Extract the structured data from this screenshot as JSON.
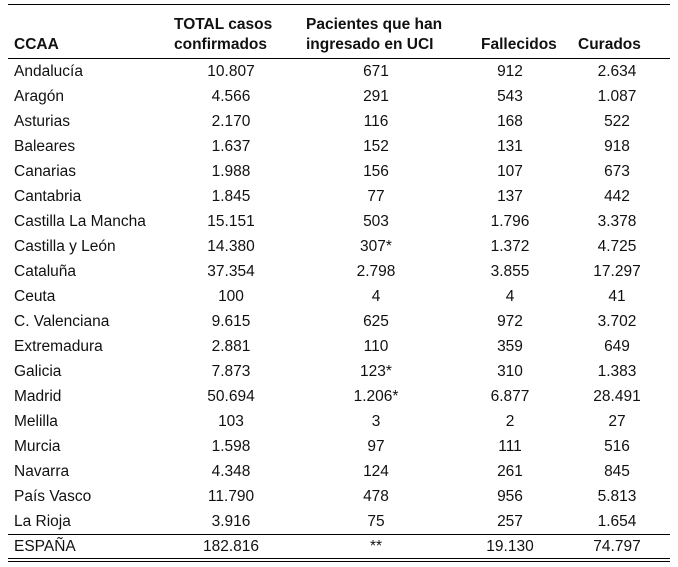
{
  "table": {
    "header": [
      "CCAA",
      "TOTAL casos confirmados",
      "Pacientes que han ingresado en UCI",
      "Fallecidos",
      "Curados"
    ],
    "rows": [
      [
        "Andalucía",
        "10.807",
        "671",
        "912",
        "2.634"
      ],
      [
        "Aragón",
        "4.566",
        "291",
        "543",
        "1.087"
      ],
      [
        "Asturias",
        "2.170",
        "116",
        "168",
        "522"
      ],
      [
        "Baleares",
        "1.637",
        "152",
        "131",
        "918"
      ],
      [
        "Canarias",
        "1.988",
        "156",
        "107",
        "673"
      ],
      [
        "Cantabria",
        "1.845",
        "77",
        "137",
        "442"
      ],
      [
        "Castilla La Mancha",
        "15.151",
        "503",
        "1.796",
        "3.378"
      ],
      [
        "Castilla y León",
        "14.380",
        "307*",
        "1.372",
        "4.725"
      ],
      [
        "Cataluña",
        "37.354",
        "2.798",
        "3.855",
        "17.297"
      ],
      [
        "Ceuta",
        "100",
        "4",
        "4",
        "41"
      ],
      [
        "C. Valenciana",
        "9.615",
        "625",
        "972",
        "3.702"
      ],
      [
        "Extremadura",
        "2.881",
        "110",
        "359",
        "649"
      ],
      [
        "Galicia",
        "7.873",
        "123*",
        "310",
        "1.383"
      ],
      [
        "Madrid",
        "50.694",
        "1.206*",
        "6.877",
        "28.491"
      ],
      [
        "Melilla",
        "103",
        "3",
        "2",
        "27"
      ],
      [
        "Murcia",
        "1.598",
        "97",
        "111",
        "516"
      ],
      [
        "Navarra",
        "4.348",
        "124",
        "261",
        "845"
      ],
      [
        "País Vasco",
        "11.790",
        "478",
        "956",
        "5.813"
      ],
      [
        "La Rioja",
        "3.916",
        "75",
        "257",
        "1.654"
      ]
    ],
    "total": [
      "ESPAÑA",
      "182.816",
      "**",
      "19.130",
      "74.797"
    ]
  }
}
